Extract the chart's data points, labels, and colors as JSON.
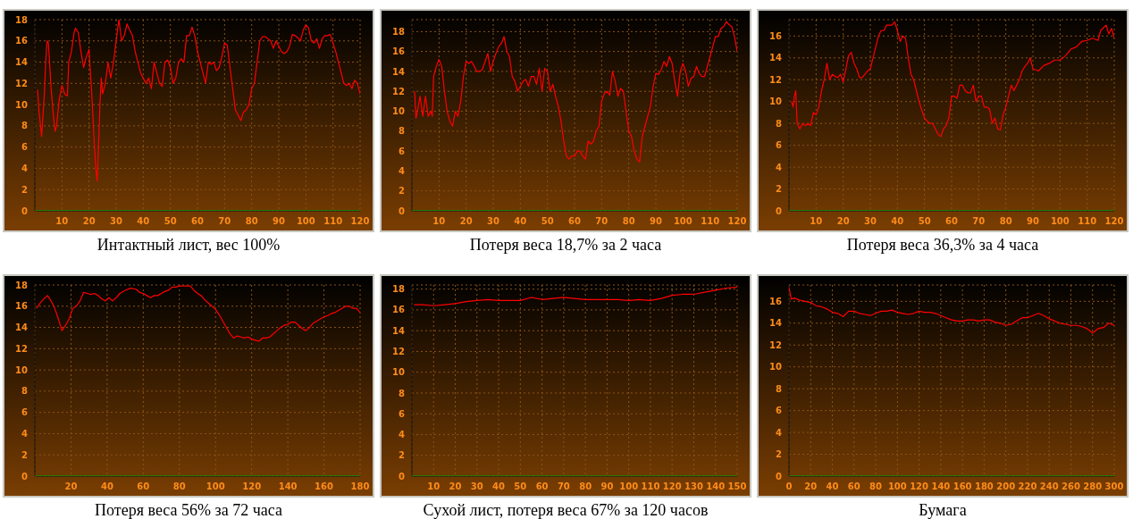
{
  "chart_data": [
    {
      "type": "line",
      "title": "Интактный лист, вес 100%",
      "color": "#ff0000",
      "grid": true,
      "xlim": [
        0,
        120
      ],
      "xticks": [
        10,
        20,
        30,
        40,
        50,
        60,
        70,
        80,
        90,
        100,
        110,
        120
      ],
      "ylim": [
        0,
        18
      ],
      "yticks": [
        0,
        2,
        4,
        6,
        8,
        10,
        12,
        14,
        16,
        18
      ],
      "series": [
        {
          "color": "#00cc00",
          "x": [
            0,
            120
          ],
          "values": [
            0,
            0
          ]
        }
      ],
      "x": [
        1,
        1.5,
        2.5,
        3.5,
        4,
        4.5,
        5,
        6,
        7,
        7.5,
        8,
        9,
        10,
        11,
        12,
        12.5,
        13.5,
        14.5,
        15,
        16,
        17,
        18,
        19,
        20,
        20.5,
        21,
        22,
        22.5,
        23,
        23.5,
        24,
        24.5,
        25,
        26,
        27,
        28,
        29,
        30,
        31,
        32,
        33,
        34,
        35,
        36,
        37,
        38,
        39,
        40,
        41,
        42,
        43,
        44,
        45,
        46,
        47,
        48,
        49,
        50,
        51,
        52,
        53,
        54,
        55,
        56,
        57,
        58,
        59,
        60,
        61,
        62,
        63,
        64,
        65,
        66,
        67,
        68,
        69,
        70,
        71,
        72,
        73,
        74,
        75,
        76,
        77,
        78,
        79,
        80,
        81,
        82,
        83,
        84,
        85,
        86,
        87,
        88,
        89,
        90,
        91,
        92,
        93,
        94,
        95,
        96,
        97,
        98,
        99,
        100,
        101,
        102,
        103,
        104,
        105,
        106,
        107,
        108,
        109,
        110,
        111,
        112,
        113,
        114,
        115,
        116,
        117,
        118,
        119,
        120
      ],
      "values": [
        11.4,
        9.5,
        7,
        11,
        14,
        16,
        15.8,
        11.5,
        8.5,
        7.5,
        8,
        10.5,
        11.8,
        11,
        10.8,
        14,
        15,
        16.8,
        17.2,
        16.8,
        15,
        13.5,
        14.5,
        15.2,
        13,
        11,
        6,
        4,
        2.8,
        6,
        10,
        12.5,
        11,
        12,
        14,
        12.5,
        14,
        16,
        18,
        16,
        16.5,
        17.6,
        17,
        16.5,
        15,
        14,
        13,
        12.5,
        12,
        12.5,
        11.5,
        14,
        13,
        12,
        11.7,
        14,
        14.2,
        13.5,
        12,
        12.5,
        14,
        14.3,
        14,
        16.5,
        16.5,
        17.3,
        16.5,
        15,
        14,
        13,
        12,
        14,
        13.8,
        14,
        13.2,
        13.5,
        14.5,
        15.8,
        15.6,
        13.5,
        11.5,
        9.5,
        9,
        8.5,
        9.3,
        9.5,
        10,
        11.5,
        12,
        14,
        16,
        16.4,
        16.4,
        16.2,
        16,
        15.3,
        16,
        15.5,
        15,
        14.8,
        15,
        15.5,
        16.6,
        16.5,
        16.3,
        16,
        17,
        17.5,
        17.2,
        16,
        15.8,
        16.2,
        15.3,
        16.2,
        16.5,
        16.5,
        16.6,
        15.8,
        15,
        14,
        13,
        12,
        11.8,
        12,
        11.5,
        12.3,
        12,
        11
      ]
    },
    {
      "type": "line",
      "title": "Потеря веса 18,7% за 2 часа",
      "color": "#ff0000",
      "grid": true,
      "xlim": [
        0,
        120
      ],
      "xticks": [
        10,
        20,
        30,
        40,
        50,
        60,
        70,
        80,
        90,
        100,
        110,
        120
      ],
      "ylim": [
        0,
        19.2
      ],
      "yticks": [
        0,
        2,
        4,
        6,
        8,
        10,
        12,
        14,
        16,
        18
      ],
      "series": [
        {
          "color": "#00cc00",
          "x": [
            0,
            120
          ],
          "values": [
            0,
            0
          ]
        }
      ],
      "x": [
        1,
        1.5,
        2,
        3,
        4,
        5,
        6,
        7,
        7.5,
        8,
        9,
        10,
        11,
        12,
        13,
        14,
        15,
        16,
        17,
        18,
        19,
        20,
        21,
        22,
        23,
        24,
        25,
        26,
        27,
        28,
        29,
        30,
        31,
        32,
        33,
        34,
        35,
        36,
        37,
        38,
        39,
        40,
        41,
        42,
        43,
        44,
        45,
        46,
        47,
        48,
        49,
        50,
        51,
        52,
        53,
        54,
        55,
        56,
        57,
        58,
        59,
        60,
        61,
        62,
        63,
        64,
        65,
        66,
        67,
        68,
        69,
        70,
        71,
        72,
        73,
        74,
        75,
        76,
        77,
        78,
        79,
        80,
        81,
        82,
        83,
        84,
        85,
        86,
        87,
        88,
        89,
        90,
        91,
        92,
        93,
        94,
        95,
        96,
        97,
        98,
        99,
        100,
        101,
        102,
        103,
        104,
        105,
        106,
        107,
        108,
        109,
        110,
        111,
        112,
        113,
        114,
        115,
        116,
        117,
        118,
        119,
        120
      ],
      "values": [
        12,
        9.3,
        10,
        11.5,
        9.5,
        11.5,
        9.5,
        10,
        9.5,
        13.5,
        14.5,
        15.2,
        14.5,
        12,
        10,
        9,
        8.5,
        10,
        9.5,
        11,
        13.5,
        15,
        14.8,
        15,
        14.5,
        14,
        14,
        14.2,
        15,
        15.8,
        14,
        15,
        15.8,
        16.5,
        16.8,
        17.5,
        16,
        15.5,
        13.5,
        13,
        12,
        12.5,
        13,
        13.2,
        12.5,
        13.5,
        13.5,
        12.7,
        14.3,
        12,
        14.3,
        14,
        12,
        12.7,
        11.5,
        10.5,
        9,
        7,
        5.5,
        5.2,
        5.5,
        5.5,
        6,
        6,
        5.5,
        5.2,
        7,
        6.7,
        7,
        8,
        8.5,
        11,
        11.8,
        12,
        11.6,
        14,
        13,
        11.5,
        12.3,
        12,
        10,
        8,
        7.5,
        6,
        5.2,
        4.9,
        7.5,
        8.5,
        9.5,
        10.5,
        12.5,
        13.8,
        13.7,
        14.2,
        15,
        14.5,
        15.5,
        14.8,
        13,
        11.5,
        14,
        14.8,
        14,
        12.5,
        13.3,
        13.5,
        14.5,
        13.8,
        13.5,
        13.5,
        14.5,
        15.5,
        16.5,
        17.5,
        17.5,
        18.3,
        18.5,
        19,
        18.7,
        18.5,
        17.5,
        16
      ]
    },
    {
      "type": "line",
      "title": "Потеря веса 36,3% за 4 часа",
      "color": "#ff0000",
      "grid": true,
      "xlim": [
        0,
        120
      ],
      "xticks": [
        10,
        20,
        30,
        40,
        50,
        60,
        70,
        80,
        90,
        100,
        110,
        120
      ],
      "ylim": [
        0,
        17.5
      ],
      "yticks": [
        0,
        2,
        4,
        6,
        8,
        10,
        12,
        14,
        16
      ],
      "series": [
        {
          "color": "#00cc00",
          "x": [
            0,
            120
          ],
          "values": [
            0,
            0
          ]
        }
      ],
      "x": [
        1,
        1.5,
        2,
        2.5,
        3,
        4,
        5,
        6,
        7,
        8,
        9,
        10,
        11,
        12,
        13,
        14,
        15,
        16,
        17,
        18,
        19,
        20,
        21,
        22,
        23,
        24,
        25,
        26,
        27,
        28,
        29,
        30,
        31,
        32,
        33,
        34,
        35,
        36,
        37,
        38,
        39,
        40,
        41,
        42,
        43,
        44,
        45,
        46,
        47,
        48,
        49,
        50,
        51,
        52,
        53,
        54,
        55,
        56,
        57,
        58,
        59,
        60,
        61,
        62,
        63,
        64,
        65,
        66,
        67,
        68,
        69,
        70,
        71,
        72,
        73,
        74,
        75,
        76,
        77,
        78,
        79,
        80,
        81,
        82,
        83,
        84,
        85,
        86,
        87,
        88,
        89,
        90,
        92,
        94,
        96,
        98,
        100,
        102,
        104,
        106,
        108,
        110,
        112,
        114,
        115,
        117,
        118,
        119,
        120
      ],
      "values": [
        10,
        9.5,
        10.5,
        11,
        8,
        7.5,
        8,
        7.8,
        8,
        7.8,
        9,
        8.8,
        9.5,
        11,
        12,
        13.5,
        12,
        12.5,
        12.3,
        12.2,
        12.5,
        11.8,
        13,
        14.2,
        14.5,
        13.5,
        13,
        12.2,
        12.2,
        12.5,
        12.8,
        13,
        14,
        15,
        16,
        16.5,
        16.5,
        17,
        17,
        17,
        17.3,
        16.5,
        15.5,
        16,
        15.8,
        14,
        12.5,
        12,
        11,
        10,
        9.2,
        8.5,
        8.2,
        8,
        8,
        7.5,
        7,
        6.8,
        7.5,
        7.8,
        8.5,
        10.5,
        10.5,
        10.3,
        11.5,
        11.5,
        11,
        10.8,
        10.8,
        11.5,
        10,
        10.5,
        10.5,
        9.5,
        9.5,
        9.3,
        8,
        8.5,
        7.5,
        7.4,
        8.8,
        9.5,
        10.5,
        11.5,
        11,
        11.5,
        12,
        12.8,
        13.2,
        13.5,
        14,
        13,
        12.8,
        13.3,
        13.5,
        13.8,
        13.8,
        14.2,
        14.8,
        15,
        15.5,
        15.6,
        15.8,
        15.6,
        16.5,
        17,
        16.2,
        16.7,
        15.8
      ]
    },
    {
      "type": "line",
      "title": "Потеря веса 56% за 72 часа",
      "color": "#ff0000",
      "grid": true,
      "xlim": [
        0,
        180
      ],
      "xticks": [
        20,
        40,
        60,
        80,
        100,
        120,
        140,
        160,
        180
      ],
      "ylim": [
        0,
        18
      ],
      "yticks": [
        0,
        2,
        4,
        6,
        8,
        10,
        12,
        14,
        16,
        18
      ],
      "series": [
        {
          "color": "#00cc00",
          "x": [
            0,
            180
          ],
          "values": [
            0,
            0
          ]
        }
      ],
      "x": [
        1,
        3,
        5,
        7,
        9,
        11,
        13,
        15,
        17,
        19,
        21,
        23,
        25,
        27,
        29,
        31,
        33,
        35,
        37,
        39,
        41,
        43,
        45,
        47,
        50,
        53,
        56,
        58,
        60,
        62,
        64,
        66,
        68,
        70,
        72,
        74,
        76,
        78,
        80,
        82,
        84,
        86,
        88,
        90,
        92,
        94,
        96,
        98,
        100,
        102,
        104,
        106,
        108,
        110,
        112,
        114,
        116,
        118,
        120,
        122,
        124,
        126,
        128,
        130,
        132,
        134,
        136,
        138,
        140,
        142,
        144,
        146,
        148,
        150,
        152,
        154,
        156,
        158,
        160,
        162,
        164,
        166,
        168,
        170,
        172,
        174,
        176,
        178,
        180
      ],
      "values": [
        15.8,
        16.3,
        16.7,
        17,
        16.5,
        15.8,
        14.8,
        13.7,
        14.2,
        14.8,
        15.8,
        16,
        16.5,
        17.3,
        17.2,
        17.1,
        17.2,
        17,
        16.7,
        16.5,
        16.8,
        16.5,
        16.8,
        17.2,
        17.5,
        17.7,
        17.6,
        17.3,
        17.2,
        17,
        16.8,
        17,
        17,
        17.2,
        17.4,
        17.5,
        17.8,
        17.8,
        17.9,
        17.9,
        17.9,
        17.9,
        17.5,
        17.2,
        17,
        16.6,
        16.3,
        16,
        15.7,
        15.2,
        14.6,
        14,
        13.4,
        13,
        13.2,
        13.1,
        13,
        13.1,
        12.9,
        12.8,
        12.7,
        13,
        13,
        13.1,
        13.4,
        13.7,
        14,
        14.2,
        14.3,
        14.5,
        14.5,
        14.2,
        13.9,
        13.7,
        14,
        14.4,
        14.6,
        14.8,
        15,
        15.1,
        15.3,
        15.4,
        15.6,
        15.8,
        16,
        16,
        15.8,
        15.8,
        15.4
      ]
    },
    {
      "type": "line",
      "title": "Сухой лист, потеря веса 67% за 120 часов",
      "color": "#ff0000",
      "grid": true,
      "xlim": [
        0,
        150
      ],
      "xticks": [
        10,
        20,
        30,
        40,
        50,
        60,
        70,
        80,
        90,
        100,
        110,
        120,
        130,
        140,
        150
      ],
      "ylim": [
        0,
        18.4
      ],
      "yticks": [
        0,
        2,
        4,
        6,
        8,
        10,
        12,
        14,
        16,
        18
      ],
      "series": [
        {
          "color": "#00cc00",
          "x": [
            0,
            150
          ],
          "values": [
            0,
            0
          ]
        }
      ],
      "x": [
        1,
        5,
        10,
        15,
        20,
        25,
        30,
        35,
        40,
        45,
        50,
        55,
        60,
        65,
        70,
        75,
        80,
        85,
        90,
        95,
        100,
        105,
        110,
        115,
        120,
        125,
        130,
        135,
        140,
        145,
        150
      ],
      "values": [
        16.5,
        16.5,
        16.4,
        16.5,
        16.6,
        16.8,
        16.9,
        17,
        16.9,
        16.9,
        16.9,
        17.2,
        17,
        17.1,
        17.2,
        17.1,
        17,
        17,
        17,
        17,
        16.9,
        17,
        16.9,
        17.1,
        17.4,
        17.5,
        17.5,
        17.7,
        17.9,
        18.1,
        18.2
      ]
    },
    {
      "type": "line",
      "title": "Бумага",
      "color": "#ff0000",
      "grid": true,
      "xlim": [
        0,
        300
      ],
      "xticks": [
        0,
        20,
        40,
        60,
        80,
        100,
        120,
        140,
        160,
        180,
        200,
        220,
        240,
        260,
        280,
        300
      ],
      "ylim": [
        0,
        17.5
      ],
      "yticks": [
        0,
        2,
        4,
        6,
        8,
        10,
        12,
        14,
        16
      ],
      "series": [
        {
          "color": "#00cc00",
          "x": [
            0,
            300
          ],
          "values": [
            0,
            0
          ]
        }
      ],
      "x": [
        0,
        2,
        5,
        10,
        15,
        20,
        25,
        30,
        35,
        40,
        45,
        50,
        55,
        60,
        65,
        70,
        75,
        80,
        85,
        90,
        95,
        100,
        105,
        110,
        115,
        120,
        125,
        130,
        135,
        140,
        145,
        150,
        155,
        160,
        165,
        170,
        175,
        180,
        185,
        190,
        195,
        200,
        205,
        210,
        215,
        220,
        225,
        230,
        235,
        240,
        245,
        250,
        255,
        260,
        265,
        270,
        275,
        280,
        285,
        290,
        295,
        300
      ],
      "values": [
        17.3,
        16.2,
        16.3,
        16.1,
        16,
        15.9,
        15.6,
        15.5,
        15.3,
        15,
        14.9,
        14.6,
        15.1,
        15.1,
        14.9,
        14.8,
        14.7,
        14.9,
        15.1,
        15.1,
        15.2,
        15,
        14.9,
        14.8,
        14.9,
        15.1,
        15,
        15,
        14.9,
        14.7,
        14.5,
        14.3,
        14.2,
        14.2,
        14.3,
        14.3,
        14.2,
        14.3,
        14.3,
        14.1,
        14,
        13.8,
        13.9,
        14.2,
        14.5,
        14.5,
        14.7,
        14.9,
        14.7,
        14.4,
        14.2,
        14,
        13.9,
        13.8,
        13.8,
        13.7,
        13.5,
        13.1,
        13.5,
        13.6,
        14,
        13.8
      ]
    }
  ]
}
